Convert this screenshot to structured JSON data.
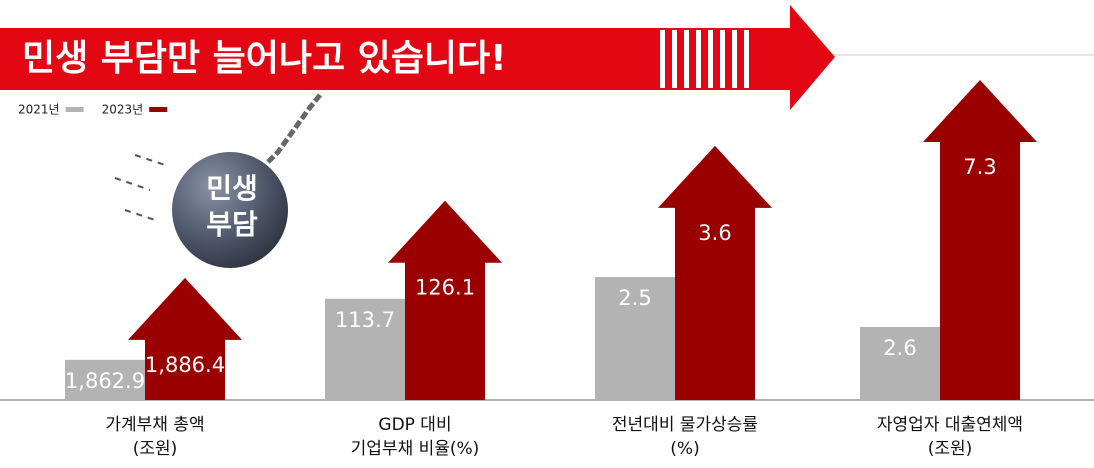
{
  "chart_data": {
    "type": "arrow-bar",
    "title": "민생 부담만 늘어나고 있습니다!",
    "categories": [
      [
        "가계부채 총액",
        "(조원)"
      ],
      [
        "GDP 대비",
        "기업부채 비율(%)"
      ],
      [
        "전년대비 물가상승률",
        "(%)"
      ],
      [
        "자영업자 대출연체액",
        "(조원)"
      ]
    ],
    "category_ylim": [
      [
        1851.4,
        1948.8
      ],
      [
        100.9,
        143.9
      ],
      [
        1.47,
        4.32
      ],
      [
        1.21,
        7.68
      ]
    ],
    "series": [
      {
        "name": "2021년",
        "color": "#b3b3b3",
        "values": [
          1862.9,
          113.7,
          2.5,
          2.6
        ],
        "value_labels": [
          "1,862.9",
          "113.7",
          "2.5",
          "2.6"
        ]
      },
      {
        "name": "2023년",
        "color": "#9b0000",
        "values": [
          1886.4,
          126.1,
          3.6,
          7.3
        ],
        "value_labels": [
          "1,886.4",
          "126.1",
          "3.6",
          "7.3"
        ]
      }
    ]
  },
  "ball_label": [
    "민생",
    "부담"
  ]
}
